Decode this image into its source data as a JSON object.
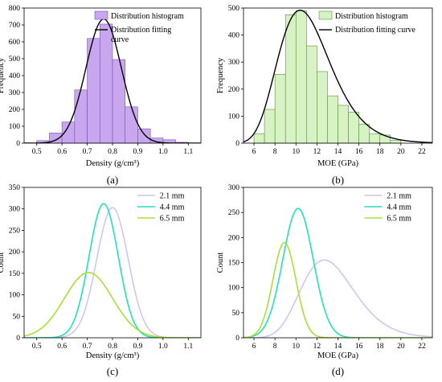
{
  "chart_data": [
    {
      "type": "histogram",
      "caption": "(a)",
      "xlabel": "Density (g/cm³)",
      "ylabel": "Frequency",
      "xlim": [
        0.45,
        1.15
      ],
      "ylim": [
        0,
        800
      ],
      "xticks": [
        "0.5",
        "0.6",
        "0.7",
        "0.8",
        "0.9",
        "1.0",
        "1.1"
      ],
      "yticks": [
        "0",
        "100",
        "200",
        "300",
        "400",
        "500",
        "600",
        "700",
        "800"
      ],
      "bin_width": 0.05,
      "bins": [
        {
          "x0": 0.5,
          "value": 15
        },
        {
          "x0": 0.55,
          "value": 60
        },
        {
          "x0": 0.6,
          "value": 125
        },
        {
          "x0": 0.65,
          "value": 315
        },
        {
          "x0": 0.7,
          "value": 620
        },
        {
          "x0": 0.75,
          "value": 705
        },
        {
          "x0": 0.8,
          "value": 495
        },
        {
          "x0": 0.85,
          "value": 215
        },
        {
          "x0": 0.9,
          "value": 85
        },
        {
          "x0": 0.95,
          "value": 30
        },
        {
          "x0": 1.0,
          "value": 20
        },
        {
          "x0": 1.05,
          "value": 5
        }
      ],
      "fit": {
        "type": "normal",
        "peak_x": 0.765,
        "peak_y": 735,
        "sigma": 0.07
      },
      "legend": {
        "position": "top-right",
        "histogram_label": "Distribution histogram",
        "curve_label_line1": "Distribution fitting",
        "curve_label_line2": "curve"
      },
      "colors": {
        "fill": "#c8a7ee",
        "stroke": "#7a4fb5",
        "curve": "#000000"
      }
    },
    {
      "type": "histogram",
      "caption": "(b)",
      "xlabel": "MOE (GPa)",
      "ylabel": "Frequency",
      "xlim": [
        5,
        23
      ],
      "ylim": [
        0,
        500
      ],
      "xticks": [
        "6",
        "8",
        "10",
        "12",
        "14",
        "16",
        "18",
        "20",
        "22"
      ],
      "yticks": [
        "0",
        "100",
        "200",
        "300",
        "400",
        "500"
      ],
      "bin_width": 1,
      "bins": [
        {
          "x0": 6,
          "value": 35
        },
        {
          "x0": 7,
          "value": 125
        },
        {
          "x0": 8,
          "value": 255
        },
        {
          "x0": 9,
          "value": 475
        },
        {
          "x0": 10,
          "value": 490
        },
        {
          "x0": 11,
          "value": 360
        },
        {
          "x0": 12,
          "value": 265
        },
        {
          "x0": 13,
          "value": 175
        },
        {
          "x0": 14,
          "value": 140
        },
        {
          "x0": 15,
          "value": 115
        },
        {
          "x0": 16,
          "value": 70
        },
        {
          "x0": 17,
          "value": 35
        },
        {
          "x0": 18,
          "value": 30
        },
        {
          "x0": 19,
          "value": 10
        }
      ],
      "fit": {
        "type": "lognormal",
        "peak_x": 10.4,
        "peak_y": 492,
        "sigma_log": 0.24
      },
      "legend": {
        "position": "top-right",
        "histogram_label": "Distribution histogram",
        "curve_label": "Distribution fitting curve"
      },
      "colors": {
        "fill": "#d8f3c3",
        "stroke": "#5b8f3d",
        "curve": "#000000"
      }
    },
    {
      "type": "line",
      "caption": "(c)",
      "xlabel": "Density (g/cm³)",
      "ylabel": "Count",
      "xlim": [
        0.45,
        1.15
      ],
      "ylim": [
        0,
        350
      ],
      "xticks": [
        "0.5",
        "0.6",
        "0.7",
        "0.8",
        "0.9",
        "1.0",
        "1.1"
      ],
      "yticks": [
        "0",
        "50",
        "100",
        "150",
        "200",
        "250",
        "300",
        "350"
      ],
      "legend": {
        "position": "top-right"
      },
      "series": [
        {
          "name": "2.1 mm",
          "color": "#d4c4ee",
          "dist": "normal",
          "peak_x": 0.8,
          "peak_y": 303,
          "sigma": 0.062
        },
        {
          "name": "4.4 mm",
          "color": "#22e0bd",
          "dist": "normal",
          "peak_x": 0.765,
          "peak_y": 312,
          "sigma": 0.058
        },
        {
          "name": "6.5 mm",
          "color": "#a8e03a",
          "dist": "normal",
          "peak_x": 0.705,
          "peak_y": 152,
          "sigma": 0.095
        }
      ]
    },
    {
      "type": "line",
      "caption": "(d)",
      "xlabel": "MOE (GPa)",
      "ylabel": "Count",
      "xlim": [
        5,
        23
      ],
      "ylim": [
        0,
        300
      ],
      "xticks": [
        "6",
        "8",
        "10",
        "12",
        "14",
        "16",
        "18",
        "20",
        "22"
      ],
      "yticks": [
        "0",
        "50",
        "100",
        "150",
        "200",
        "250",
        "300"
      ],
      "legend": {
        "position": "top-right"
      },
      "series": [
        {
          "name": "2.1 mm",
          "color": "#d4c4ee",
          "dist": "lognormal",
          "peak_x": 12.7,
          "peak_y": 155,
          "sigma_log": 0.2
        },
        {
          "name": "4.4 mm",
          "color": "#22e0bd",
          "dist": "normal",
          "peak_x": 10.2,
          "peak_y": 258,
          "sigma": 1.45
        },
        {
          "name": "6.5 mm",
          "color": "#a8e03a",
          "dist": "normal",
          "peak_x": 8.9,
          "peak_y": 190,
          "sigma": 1.1
        }
      ]
    }
  ]
}
